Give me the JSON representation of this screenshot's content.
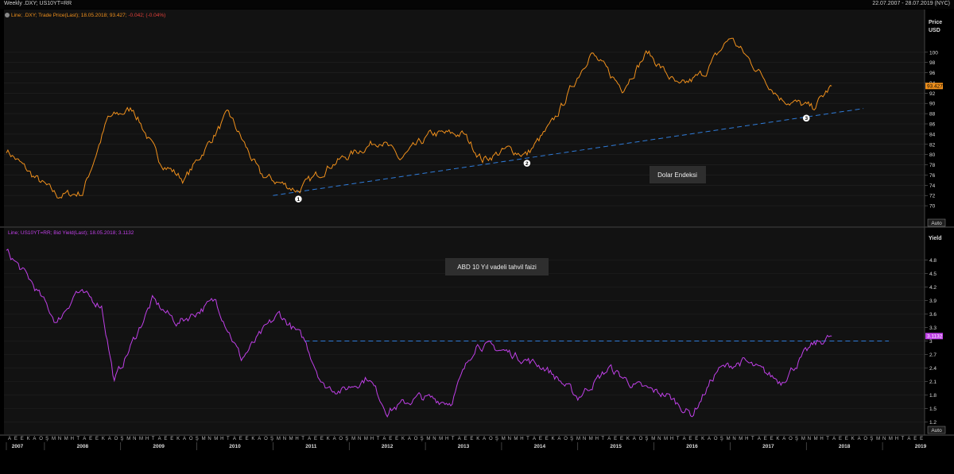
{
  "window": {
    "title": "Weekly .DXY; US10YT=RR",
    "date_range": "22.07.2007 - 28.07.2019 (NYC)"
  },
  "colors": {
    "dxy": "#f0901c",
    "yield": "#c040e8",
    "trendline": "#2f7bd8",
    "panel_bg": "#121212",
    "grid": "#262626"
  },
  "top_panel": {
    "legend_prefix": "Line; .DXY; Trade Price(Last); 18.05.2018; 93.427;",
    "legend_change": "-0.042; (-0.04%)",
    "axis_title_1": "Price",
    "axis_title_2": "USD",
    "last_value_tag": "93.427",
    "annotation": "Dolar Endeksi",
    "auto_button": "Auto",
    "markers": [
      "1",
      "2",
      "3"
    ]
  },
  "bottom_panel": {
    "legend": "Line; US10YT=RR; Bid Yield(Last); 18.05.2018; 3.1132",
    "axis_title": "Yield",
    "last_value_tag": "3.1132",
    "annotation": "ABD 10 Yıl vadeli tahvil faizi",
    "auto_button": "Auto"
  },
  "x_axis": {
    "month_letters": [
      "A",
      "E",
      "E",
      "K",
      "A",
      "O",
      "Ş",
      "M",
      "N",
      "M",
      "H",
      "T",
      "A",
      "E",
      "E",
      "K",
      "A",
      "O",
      "Ş",
      "M",
      "N",
      "M",
      "H",
      "T"
    ],
    "years": [
      "2007",
      "2008",
      "2009",
      "2010",
      "2011",
      "2012",
      "2013",
      "2014",
      "2015",
      "2016",
      "2017",
      "2018",
      "2019"
    ]
  },
  "chart_data": [
    {
      "type": "line",
      "title": "Dolar Endeksi",
      "ylabel": "Price USD",
      "series": [
        {
          "name": ".DXY",
          "x": [
            "2007-07",
            "2007-11",
            "2008-03",
            "2008-07",
            "2008-11",
            "2009-03",
            "2009-07",
            "2009-11",
            "2010-06",
            "2010-11",
            "2011-05",
            "2011-10",
            "2012-06",
            "2012-09",
            "2013-02",
            "2013-07",
            "2013-10",
            "2014-02",
            "2014-05",
            "2014-09",
            "2015-03",
            "2015-08",
            "2015-12",
            "2016-05",
            "2016-09",
            "2017-01",
            "2017-05",
            "2017-09",
            "2018-02",
            "2018-05"
          ],
          "values": [
            81,
            76,
            72,
            72.5,
            87,
            89,
            79,
            75,
            88,
            76,
            73,
            78,
            83,
            79,
            84,
            84,
            79,
            81,
            80,
            86,
            100,
            93,
            100,
            93,
            96,
            103,
            97,
            91,
            89,
            93.4
          ]
        }
      ],
      "ylim": [
        68,
        104
      ],
      "yticks": [
        70,
        72,
        74,
        76,
        78,
        80,
        82,
        84,
        86,
        88,
        90,
        92,
        94,
        96,
        98,
        100
      ],
      "trendline": {
        "from": {
          "x": "2011-01",
          "y": 72
        },
        "to": {
          "x": "2018-10",
          "y": 89
        }
      },
      "annotations": [
        {
          "label": "1",
          "x": "2011-05",
          "y": 72.4
        },
        {
          "label": "2",
          "x": "2014-05",
          "y": 79.4
        },
        {
          "label": "3",
          "x": "2018-01",
          "y": 88.2
        }
      ]
    },
    {
      "type": "line",
      "title": "ABD 10 Yıl vadeli tahvil faizi",
      "ylabel": "Yield",
      "series": [
        {
          "name": "US10YT=RR",
          "x": [
            "2007-07",
            "2007-11",
            "2008-03",
            "2008-06",
            "2008-10",
            "2008-12",
            "2009-06",
            "2009-10",
            "2010-04",
            "2010-08",
            "2010-12",
            "2011-02",
            "2011-06",
            "2011-09",
            "2011-12",
            "2012-04",
            "2012-07",
            "2012-12",
            "2013-05",
            "2013-09",
            "2014-02",
            "2014-08",
            "2015-01",
            "2015-06",
            "2015-10",
            "2016-03",
            "2016-07",
            "2016-11",
            "2017-03",
            "2017-09",
            "2018-02",
            "2018-05"
          ],
          "values": [
            5.0,
            4.3,
            3.4,
            4.1,
            3.8,
            2.1,
            3.9,
            3.4,
            3.9,
            2.6,
            3.3,
            3.6,
            3.0,
            2.0,
            1.9,
            2.2,
            1.45,
            1.75,
            1.65,
            2.95,
            2.75,
            2.4,
            1.75,
            2.4,
            2.0,
            1.8,
            1.36,
            2.35,
            2.55,
            2.1,
            2.9,
            3.11
          ]
        }
      ],
      "ylim": [
        1.05,
        5.25
      ],
      "yticks": [
        1.2,
        1.5,
        1.8,
        2.1,
        2.4,
        2.7,
        3,
        3.3,
        3.6,
        3.9,
        4.2,
        4.5,
        4.8
      ],
      "reference_line": {
        "y": 3.0,
        "from": "2011-06",
        "to": "2019-02"
      }
    }
  ]
}
